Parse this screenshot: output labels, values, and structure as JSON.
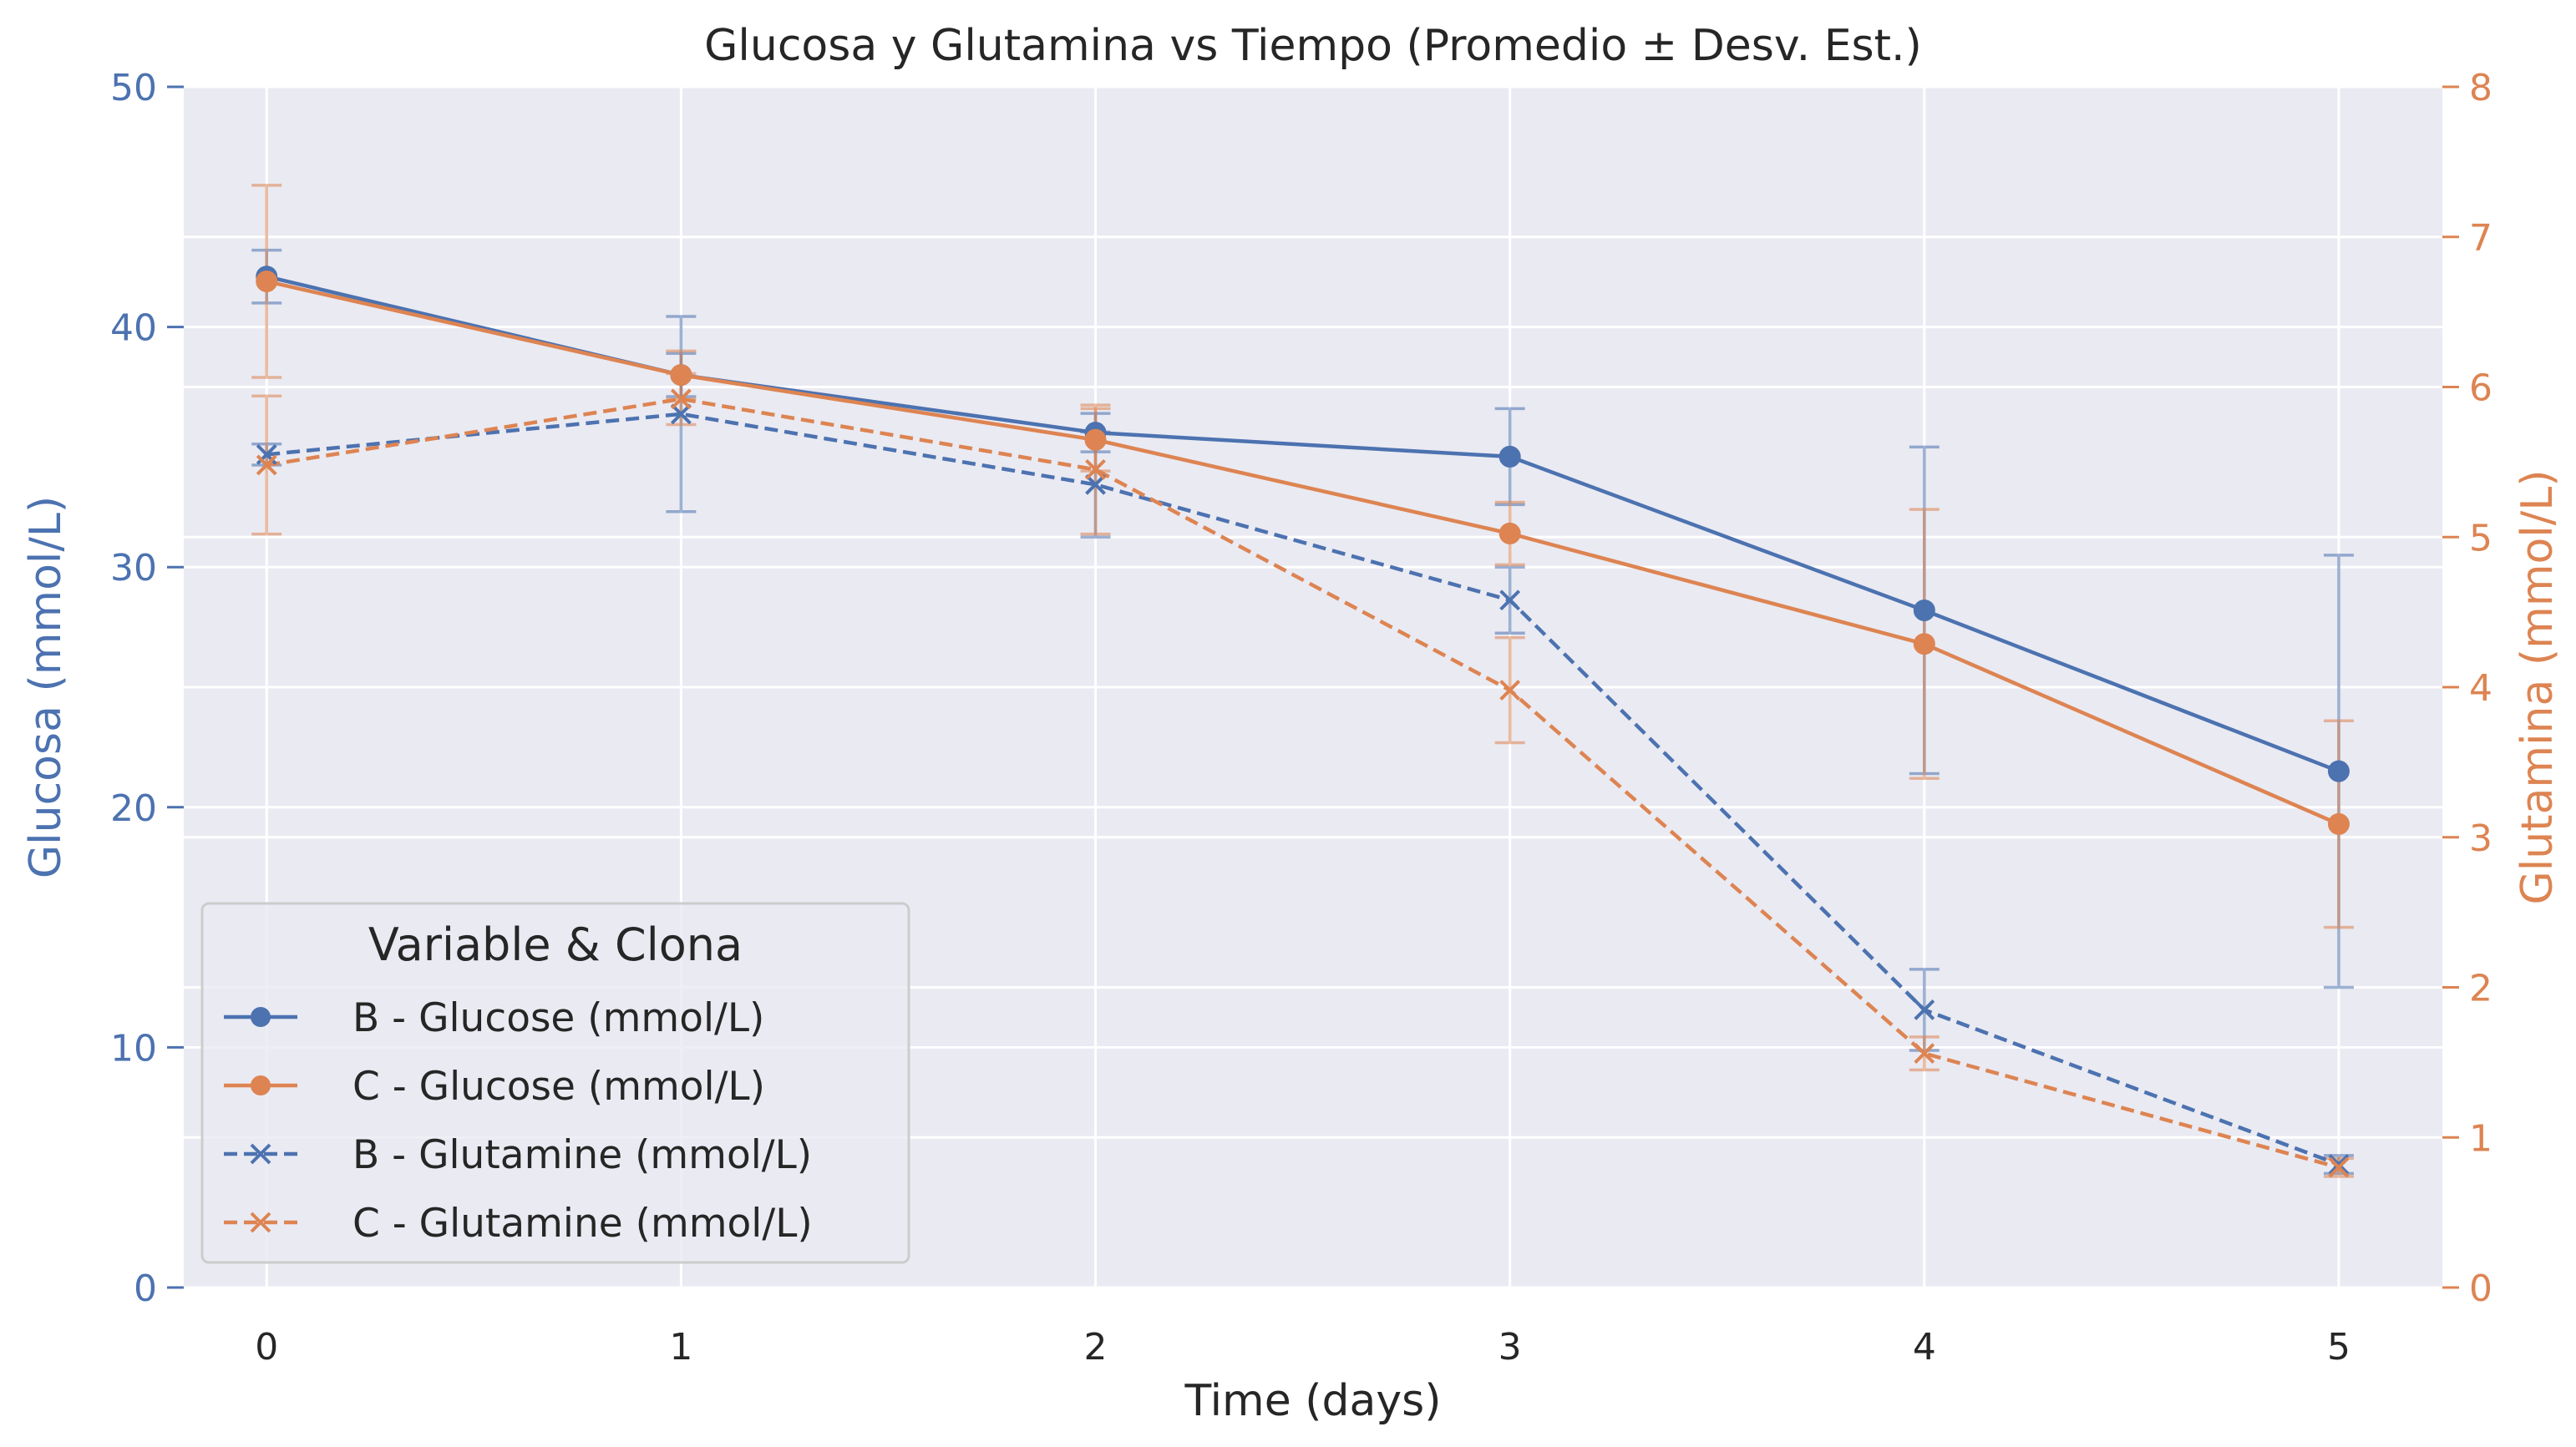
{
  "chart_data": {
    "type": "line",
    "title": "Glucosa y Glutamina vs Tiempo (Promedio ± Desv. Est.)",
    "xlabel": "Time (days)",
    "ylabel_left": "Glucosa (mmol/L)",
    "ylabel_right": "Glutamina (mmol/L)",
    "x": [
      0,
      1,
      2,
      3,
      4,
      5
    ],
    "x_ticks": [
      "0",
      "1",
      "2",
      "3",
      "4",
      "5"
    ],
    "ylim_left": [
      0,
      50
    ],
    "ylim_right": [
      0,
      8
    ],
    "y_ticks_left": [
      "0",
      "10",
      "20",
      "30",
      "40",
      "50"
    ],
    "y_ticks_right": [
      "0",
      "1",
      "2",
      "3",
      "4",
      "5",
      "6",
      "7",
      "8"
    ],
    "grid": true,
    "legend": {
      "title": "Variable & Clona",
      "placement": "lower-left"
    },
    "series": [
      {
        "name": "B - Glucose (mmol/L)",
        "axis": "left",
        "color": "#4c72b0",
        "linestyle": "solid",
        "marker": "circle",
        "values": [
          42.1,
          38.0,
          35.6,
          34.6,
          28.2,
          21.5
        ],
        "errors": [
          1.1,
          0.9,
          0.8,
          2.0,
          6.8,
          9.0
        ]
      },
      {
        "name": "C - Glucose (mmol/L)",
        "axis": "left",
        "color": "#dd8452",
        "linestyle": "solid",
        "marker": "circle",
        "values": [
          41.9,
          38.0,
          35.3,
          31.4,
          26.8,
          19.3
        ],
        "errors": [
          4.0,
          1.0,
          1.3,
          1.3,
          5.6,
          4.3
        ]
      },
      {
        "name": "B - Glutamine (mmol/L)",
        "axis": "right",
        "color": "#4c72b0",
        "linestyle": "dashed",
        "marker": "x",
        "values": [
          5.55,
          5.82,
          5.35,
          4.58,
          1.85,
          0.82
        ],
        "errors": [
          0.07,
          0.65,
          0.35,
          0.22,
          0.27,
          0.06
        ]
      },
      {
        "name": "C - Glutamine (mmol/L)",
        "axis": "right",
        "color": "#dd8452",
        "linestyle": "dashed",
        "marker": "x",
        "values": [
          5.48,
          5.92,
          5.45,
          3.98,
          1.56,
          0.8
        ],
        "errors": [
          0.46,
          0.17,
          0.43,
          0.35,
          0.11,
          0.06
        ]
      }
    ],
    "colors": {
      "left_axis": "#4c72b0",
      "right_axis": "#dd8452",
      "plot_background": "#eaeaf2",
      "grid": "#ffffff",
      "text": "#262626"
    }
  }
}
